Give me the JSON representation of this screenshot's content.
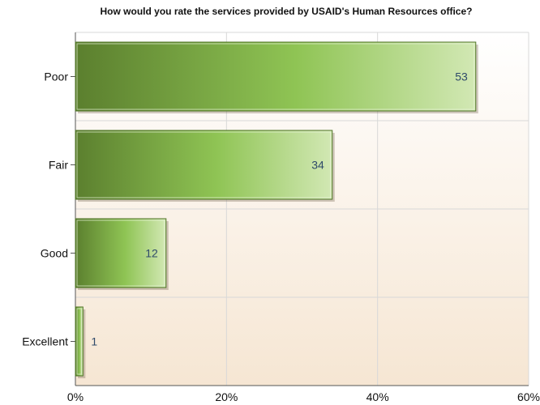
{
  "chart_data": {
    "type": "bar",
    "orientation": "horizontal",
    "title": "How would you rate the services provided by USAID's Human Resources office?",
    "xlabel": "",
    "ylabel": "",
    "categories": [
      "Poor",
      "Fair",
      "Good",
      "Excellent"
    ],
    "values": [
      53,
      34,
      12,
      1
    ],
    "value_labels": [
      "53",
      "34",
      "12",
      "1"
    ],
    "x_ticks": [
      "0%",
      "20%",
      "40%",
      "60%"
    ],
    "xlim": [
      0,
      60
    ],
    "grid": true,
    "legend": "none",
    "colors": {
      "bar_dark": "#5b7f2e",
      "bar_mid": "#8fc454",
      "bar_light": "#d2e8b4",
      "plot_bg_top": "#ffffff",
      "plot_bg_bottom": "#f6e6d3",
      "grid": "#d8d8d8"
    }
  }
}
